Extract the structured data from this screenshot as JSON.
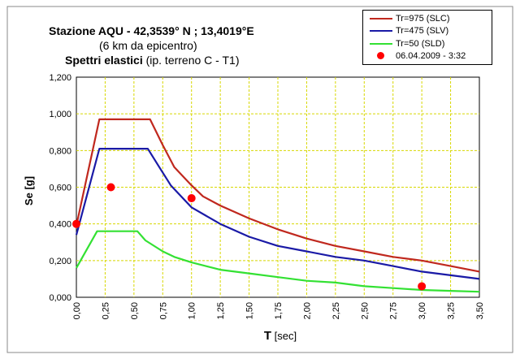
{
  "chart_data": {
    "type": "line",
    "title_line1_prefix": "Stazione AQU",
    "title_line1_coords": "  -  42,3539° N  ; 13,4019°E",
    "title_line2": "(6 km da epicentro)",
    "title_line3_bold": "Spettri elastici",
    "title_line3_rest": " (ip. terreno C - T1)",
    "xlabel_main": "T",
    "xlabel_unit": " [sec]",
    "ylabel": "Se  [g]",
    "xlim": [
      0,
      3.5
    ],
    "ylim": [
      0,
      1.2
    ],
    "x_ticks": [
      "0,00",
      "0,25",
      "0,50",
      "0,75",
      "1,00",
      "1,25",
      "1,50",
      "1,75",
      "2,00",
      "2,25",
      "2,50",
      "2,75",
      "3,00",
      "3,25",
      "3,50"
    ],
    "y_ticks": [
      "0,000",
      "0,200",
      "0,400",
      "0,600",
      "0,800",
      "1,000",
      "1,200"
    ],
    "grid": true,
    "legend_position": "top-right",
    "series": [
      {
        "name": "Tr=975 (SLC)",
        "color": "#c0281e",
        "points": [
          [
            0,
            0.39
          ],
          [
            0.2,
            0.97
          ],
          [
            0.35,
            0.97
          ],
          [
            0.5,
            0.97
          ],
          [
            0.64,
            0.97
          ],
          [
            0.75,
            0.83
          ],
          [
            0.85,
            0.71
          ],
          [
            1.0,
            0.61
          ],
          [
            1.1,
            0.55
          ],
          [
            1.25,
            0.5
          ],
          [
            1.5,
            0.43
          ],
          [
            1.75,
            0.37
          ],
          [
            2.0,
            0.32
          ],
          [
            2.25,
            0.28
          ],
          [
            2.5,
            0.25
          ],
          [
            2.75,
            0.22
          ],
          [
            3.0,
            0.2
          ],
          [
            3.25,
            0.17
          ],
          [
            3.5,
            0.14
          ]
        ]
      },
      {
        "name": "Tr=475 (SLV)",
        "color": "#1a1aa6",
        "points": [
          [
            0,
            0.34
          ],
          [
            0.2,
            0.81
          ],
          [
            0.35,
            0.81
          ],
          [
            0.5,
            0.81
          ],
          [
            0.62,
            0.81
          ],
          [
            0.72,
            0.71
          ],
          [
            0.82,
            0.61
          ],
          [
            1.0,
            0.49
          ],
          [
            1.25,
            0.4
          ],
          [
            1.5,
            0.33
          ],
          [
            1.75,
            0.28
          ],
          [
            2.0,
            0.25
          ],
          [
            2.25,
            0.22
          ],
          [
            2.5,
            0.2
          ],
          [
            2.75,
            0.17
          ],
          [
            3.0,
            0.14
          ],
          [
            3.25,
            0.12
          ],
          [
            3.5,
            0.1
          ]
        ]
      },
      {
        "name": "Tr=50 (SLD)",
        "color": "#33e133",
        "points": [
          [
            0,
            0.16
          ],
          [
            0.18,
            0.36
          ],
          [
            0.35,
            0.36
          ],
          [
            0.53,
            0.36
          ],
          [
            0.6,
            0.31
          ],
          [
            0.75,
            0.25
          ],
          [
            0.85,
            0.22
          ],
          [
            1.0,
            0.19
          ],
          [
            1.25,
            0.15
          ],
          [
            1.5,
            0.13
          ],
          [
            1.75,
            0.11
          ],
          [
            2.0,
            0.09
          ],
          [
            2.25,
            0.08
          ],
          [
            2.5,
            0.06
          ],
          [
            2.75,
            0.05
          ],
          [
            3.0,
            0.04
          ],
          [
            3.25,
            0.035
          ],
          [
            3.5,
            0.03
          ]
        ]
      }
    ],
    "scatter": {
      "name": "06.04.2009 - 3:32",
      "color": "#ff0000",
      "points": [
        [
          0,
          0.4
        ],
        [
          0.3,
          0.6
        ],
        [
          1.0,
          0.54
        ],
        [
          3.0,
          0.06
        ]
      ]
    }
  }
}
